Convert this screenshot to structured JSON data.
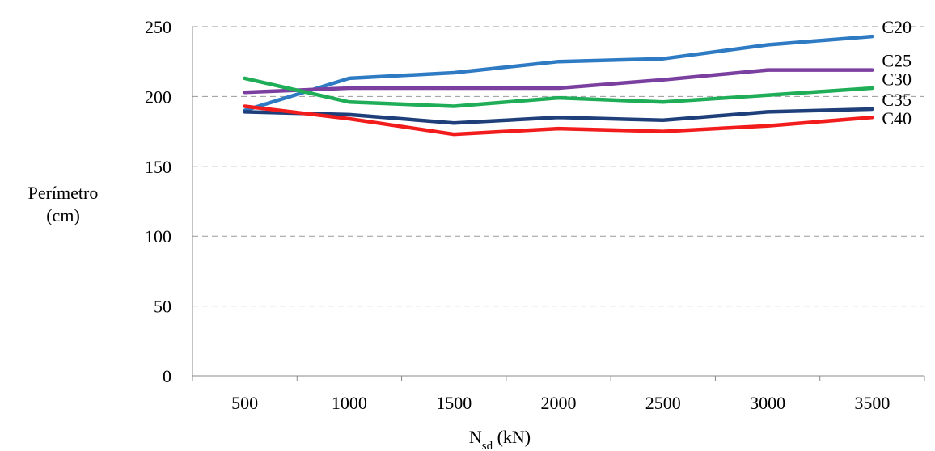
{
  "chart_data": {
    "type": "line",
    "x": [
      500,
      1000,
      1500,
      2000,
      2500,
      3000,
      3500
    ],
    "xlabel_main": "N",
    "xlabel_sub": "sd",
    "xlabel_unit": " (kN)",
    "ylabel_line1": "Perímetro",
    "ylabel_line2": "(cm)",
    "ylim": [
      0,
      250
    ],
    "yticks": [
      0,
      50,
      100,
      150,
      200,
      250
    ],
    "grid": true,
    "series": [
      {
        "name": "C20",
        "color": "#2E7BC4",
        "values": [
          190,
          213,
          217,
          225,
          227,
          237,
          243
        ]
      },
      {
        "name": "C25",
        "color": "#7B3FA0",
        "values": [
          203,
          206,
          206,
          206,
          212,
          219,
          219
        ]
      },
      {
        "name": "C30",
        "color": "#1FAE57",
        "values": [
          213,
          196,
          193,
          199,
          196,
          201,
          206
        ]
      },
      {
        "name": "C35",
        "color": "#1F3F7A",
        "values": [
          189,
          187,
          181,
          185,
          183,
          189,
          191
        ]
      },
      {
        "name": "C40",
        "color": "#F21C1C",
        "values": [
          193,
          184,
          173,
          177,
          175,
          179,
          185
        ]
      }
    ]
  }
}
